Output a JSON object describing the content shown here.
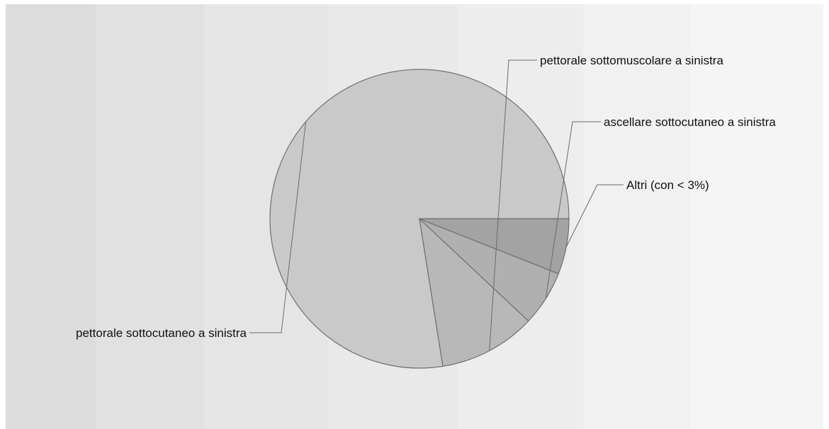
{
  "chart_data": {
    "type": "pie",
    "title": "",
    "slices": [
      {
        "label": "pettorale sottocutaneo a sinistra",
        "value": 77.5,
        "color": "#c9c9c9"
      },
      {
        "label": "pettorale sottomuscolare a sinistra",
        "value": 10.5,
        "color": "#b8b8b8"
      },
      {
        "label": "ascellare sottocutaneo a sinistra",
        "value": 6.0,
        "color": "#b0b0b0"
      },
      {
        "label": "Altri (con < 3%)",
        "value": 6.0,
        "color": "#a3a3a3"
      }
    ],
    "background_bands": [
      "#dcdcdc",
      "#e1e1e1",
      "#e5e5e5",
      "#e9e9e9",
      "#ededed",
      "#f1f1f1",
      "#f5f5f5",
      "#f9f9f9"
    ]
  }
}
